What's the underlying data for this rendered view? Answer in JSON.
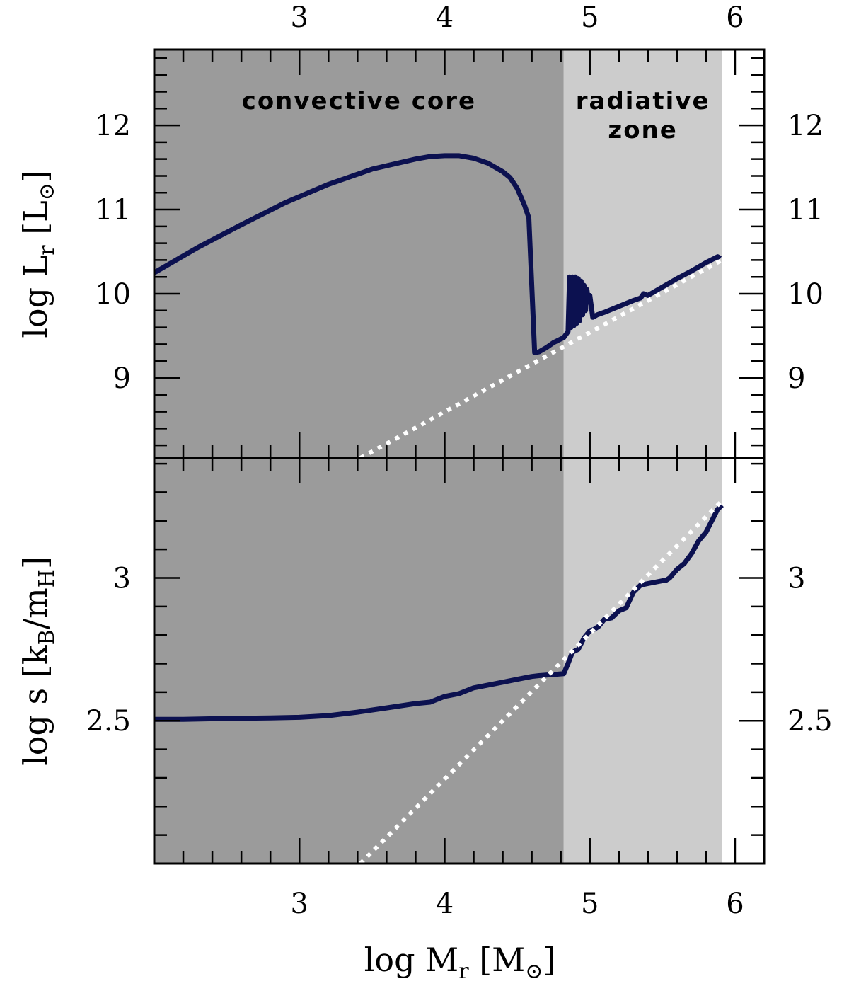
{
  "colors": {
    "convective_core_shade": "#9b9b9b",
    "radiative_zone_shade": "#cccccc",
    "model_line": "#0c1150",
    "fit_line": "#ffffff",
    "convective_label": "#d6d6d6",
    "radiative_label": "#a3a3a3"
  },
  "chart_data": {
    "type": "line",
    "shared_x": {
      "label_main": "log M",
      "label_sub": "r",
      "label_unit_open": " [M",
      "label_unit_sub": "⊙",
      "label_unit_close": "]",
      "xlim": [
        2.0,
        6.2
      ],
      "ticks": [
        3,
        4,
        5,
        6
      ],
      "tick_labels": [
        "3",
        "4",
        "5",
        "6"
      ]
    },
    "regions": [
      {
        "label_lines": [
          "convective core"
        ],
        "x_range": [
          2.0,
          4.82
        ],
        "color_key": "convective_core_shade"
      },
      {
        "label_lines": [
          "radiative",
          "zone"
        ],
        "x_range": [
          4.82,
          5.91
        ],
        "color_key": "radiative_zone_shade"
      }
    ],
    "panels": [
      {
        "ylabel_main": "log L",
        "ylabel_sub": "r",
        "ylabel_unit_open": " [L",
        "ylabel_unit_sub": "⊙",
        "ylabel_unit_close": "]",
        "ylim": [
          8.05,
          12.9
        ],
        "yticks": [
          9,
          10,
          11,
          12
        ],
        "ytick_labels": [
          "9",
          "10",
          "11",
          "12"
        ],
        "minor_step": 0.2,
        "series": [
          {
            "style": "solid",
            "x": [
              2.0,
              2.3,
              2.6,
              2.9,
              3.2,
              3.5,
              3.8,
              3.9,
              4.0,
              4.1,
              4.2,
              4.3,
              4.4,
              4.45,
              4.5,
              4.55,
              4.58,
              4.6,
              4.62,
              4.65,
              4.7,
              4.75,
              4.82,
              4.85,
              4.86,
              4.87,
              4.88,
              4.89,
              4.9,
              4.91,
              4.92,
              4.93,
              4.94,
              4.95,
              4.96,
              4.97,
              4.98,
              4.99,
              5.0,
              5.02,
              5.05,
              5.1,
              5.2,
              5.3,
              5.35,
              5.37,
              5.4,
              5.5,
              5.6,
              5.7,
              5.8,
              5.88,
              5.9
            ],
            "y": [
              10.25,
              10.55,
              10.82,
              11.08,
              11.3,
              11.48,
              11.6,
              11.63,
              11.64,
              11.64,
              11.61,
              11.55,
              11.45,
              11.38,
              11.25,
              11.05,
              10.9,
              10.1,
              9.3,
              9.31,
              9.36,
              9.42,
              9.48,
              9.55,
              10.2,
              9.6,
              10.2,
              9.62,
              10.2,
              9.65,
              10.18,
              9.68,
              10.15,
              9.75,
              10.1,
              9.8,
              10.05,
              9.9,
              9.98,
              9.72,
              9.75,
              9.78,
              9.85,
              9.92,
              9.95,
              10.0,
              9.98,
              10.08,
              10.18,
              10.27,
              10.37,
              10.44,
              10.42
            ]
          },
          {
            "style": "dotted",
            "x": [
              3.42,
              5.91
            ],
            "y": [
              8.05,
              10.4
            ]
          }
        ]
      },
      {
        "ylabel_main": "log s",
        "ylabel_unit_open": " [k",
        "ylabel_unit_sub1": "B",
        "ylabel_unit_mid": "/m",
        "ylabel_unit_sub2": "H",
        "ylabel_unit_close": "]",
        "ylim": [
          2.0,
          3.42
        ],
        "yticks": [
          2.5,
          3.0
        ],
        "ytick_labels": [
          "2.5",
          "3"
        ],
        "minor_step": 0.1,
        "series": [
          {
            "style": "solid",
            "x": [
              2.0,
              2.2,
              2.5,
              2.8,
              3.0,
              3.2,
              3.4,
              3.6,
              3.8,
              3.9,
              4.0,
              4.05,
              4.1,
              4.2,
              4.3,
              4.4,
              4.5,
              4.6,
              4.65,
              4.7,
              4.82,
              4.85,
              4.88,
              4.92,
              4.96,
              5.0,
              5.03,
              5.06,
              5.1,
              5.15,
              5.2,
              5.25,
              5.3,
              5.32,
              5.35,
              5.4,
              5.45,
              5.5,
              5.52,
              5.55,
              5.6,
              5.65,
              5.7,
              5.75,
              5.8,
              5.85,
              5.88,
              5.91
            ],
            "y": [
              2.505,
              2.505,
              2.508,
              2.51,
              2.512,
              2.518,
              2.53,
              2.545,
              2.56,
              2.565,
              2.585,
              2.59,
              2.595,
              2.615,
              2.625,
              2.635,
              2.645,
              2.655,
              2.658,
              2.66,
              2.665,
              2.7,
              2.74,
              2.75,
              2.79,
              2.815,
              2.82,
              2.83,
              2.855,
              2.86,
              2.885,
              2.895,
              2.95,
              2.96,
              2.975,
              2.98,
              2.985,
              2.99,
              2.99,
              3.0,
              3.03,
              3.05,
              3.085,
              3.13,
              3.16,
              3.21,
              3.24,
              3.255
            ]
          },
          {
            "style": "dotted",
            "x": [
              3.42,
              5.91
            ],
            "y": [
              2.0,
              3.27
            ]
          }
        ]
      }
    ]
  }
}
